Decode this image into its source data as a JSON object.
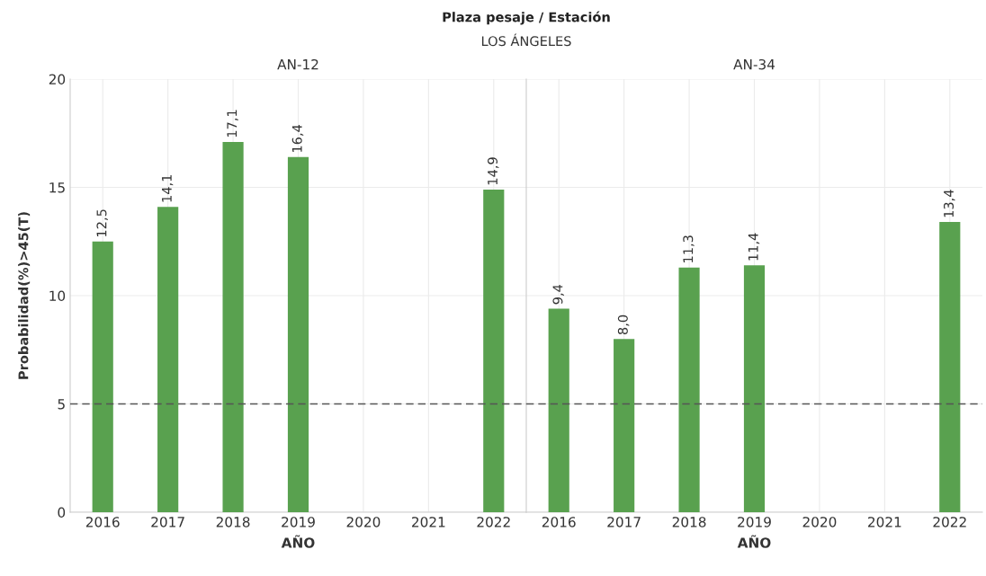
{
  "chart_data": [
    {
      "type": "bar",
      "title": "AN-12",
      "annotations": [
        "Plaza pesaje / Estación",
        "LOS ÁNGELES"
      ],
      "xlabel": "AÑO",
      "ylabel": "Probabilidad(%)>45(T)",
      "categories": [
        "2016",
        "2017",
        "2018",
        "2019",
        "2020",
        "2021",
        "2022"
      ],
      "series": [
        {
          "color": "#59a14f",
          "values": [
            12.5,
            14.1,
            17.1,
            16.4,
            null,
            null,
            14.9
          ],
          "value_labels": [
            "12,5",
            "14,1",
            "17,1",
            "16,4",
            null,
            null,
            "14,9"
          ]
        }
      ],
      "ylim": [
        0,
        20
      ],
      "yticks": [
        0,
        5,
        10,
        15,
        20
      ],
      "grid": true,
      "ref_lines": [
        {
          "axis": "y",
          "value": 5,
          "color": "#555555",
          "line_style": "dashed"
        }
      ]
    },
    {
      "type": "bar",
      "title": "AN-34",
      "xlabel": "AÑO",
      "categories": [
        "2016",
        "2017",
        "2018",
        "2019",
        "2020",
        "2021",
        "2022"
      ],
      "series": [
        {
          "color": "#59a14f",
          "values": [
            9.4,
            8.0,
            11.3,
            11.4,
            null,
            null,
            13.4
          ],
          "value_labels": [
            "9,4",
            "8,0",
            "11,3",
            "11,4",
            null,
            null,
            "13,4"
          ]
        }
      ],
      "ylim": [
        0,
        20
      ],
      "yticks": [
        0,
        5,
        10,
        15,
        20
      ],
      "grid": true,
      "tick_labels": "x",
      "ref_lines": [
        {
          "axis": "y",
          "value": 5,
          "color": "#555555",
          "line_style": "dashed"
        }
      ]
    }
  ]
}
